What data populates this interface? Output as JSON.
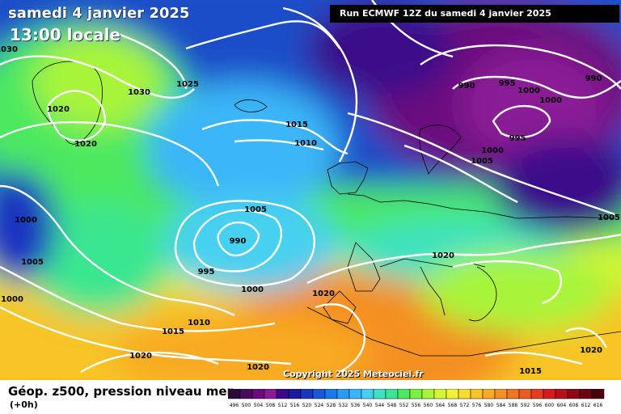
{
  "header": {
    "date": "samedi 4 janvier 2025",
    "time": "13:00 locale",
    "run": "Run ECMWF 12Z du samedi 4 janvier 2025"
  },
  "copyright": "Copyright 2025 Meteociel.fr",
  "footer": {
    "title": "Géop. z500, pression niveau mer",
    "subtitle": "(+0h)"
  },
  "scale": {
    "labels": [
      "496",
      "500",
      "504",
      "508",
      "512",
      "516",
      "520",
      "524",
      "528",
      "532",
      "536",
      "540",
      "544",
      "548",
      "552",
      "556",
      "560",
      "564",
      "568",
      "572",
      "576",
      "580",
      "584",
      "588",
      "592",
      "596",
      "600",
      "604",
      "608",
      "612",
      "616"
    ],
    "colors": [
      "#2a0a36",
      "#4a0a5e",
      "#6a0a7e",
      "#8a1a96",
      "#3a0a8a",
      "#1a1aa0",
      "#1a36c0",
      "#1a56d8",
      "#1a78ec",
      "#2a9af4",
      "#3ab6f8",
      "#46d0f0",
      "#3ee2c0",
      "#3ae690",
      "#4ce860",
      "#7af040",
      "#a8f43a",
      "#d4f436",
      "#f4f038",
      "#f8dc30",
      "#f8c428",
      "#f8aa24",
      "#f49024",
      "#f07624",
      "#ec5a24",
      "#e43a24",
      "#d41c20",
      "#b81018",
      "#900814",
      "#6a0410",
      "#4a000a"
    ]
  },
  "isobars": [
    "1030",
    "1025",
    "1030",
    "1020",
    "1020",
    "1015",
    "1010",
    "990",
    "995",
    "1000",
    "1000",
    "990",
    "995",
    "1000",
    "1005",
    "1005",
    "1000",
    "1005",
    "1000",
    "1005",
    "990",
    "995",
    "1000",
    "1020",
    "1020",
    "1010",
    "1015",
    "1020",
    "1020",
    "1015",
    "1020"
  ]
}
